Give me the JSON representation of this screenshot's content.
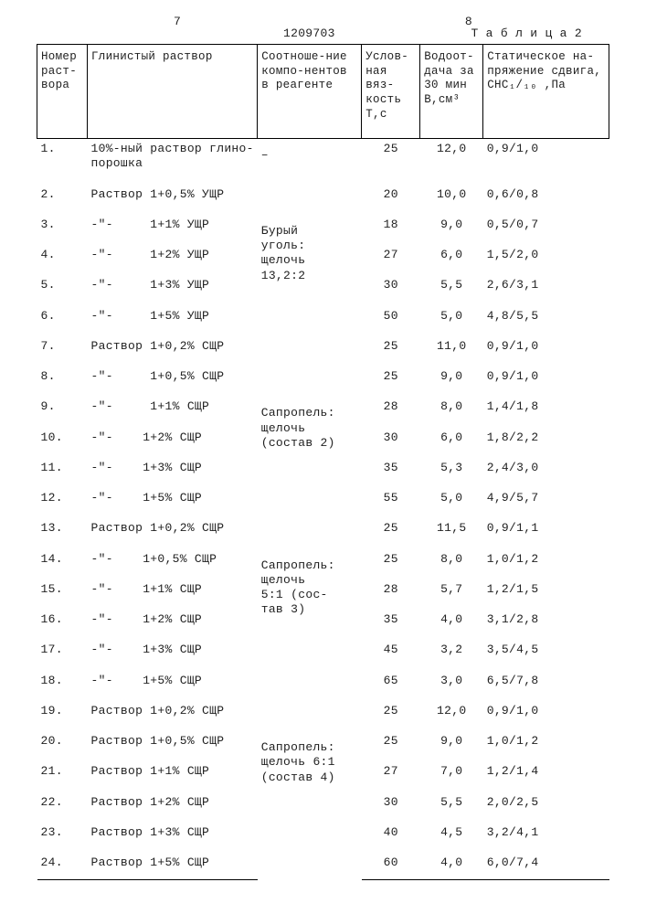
{
  "header": {
    "left_page_col": "7",
    "doc_number": "1209703",
    "right_page_col": "8",
    "table_caption": "Т а б л и ц а  2"
  },
  "columns": {
    "c1": "Номер раст-вора",
    "c2": "Глинистый раствор",
    "c3": "Соотноше-ние компо-нентов в реагенте",
    "c4": "Услов-ная вяз-кость Т,с",
    "c5": "Водоот-дача за 30 мин В,см³",
    "c6": "Статическое на-пряжение сдвига, СНС₁/₁₀ ,Па"
  },
  "groups": [
    {
      "ratio": "–",
      "rows": [
        {
          "n": "1.",
          "sol": "10%-ный раствор глино-\nпорошка",
          "T": "25",
          "B": "12,0",
          "S": "0,9/1,0"
        }
      ]
    },
    {
      "ratio": "",
      "rows": [
        {
          "n": "2.",
          "sol": "Раствор 1+0,5% УЩР",
          "T": "20",
          "B": "10,0",
          "S": "0,6/0,8"
        }
      ]
    },
    {
      "ratio": "Бурый\nуголь:\nщелочь\n13,2:2",
      "rows": [
        {
          "n": "3.",
          "sol": "-\"-     1+1% УЩР",
          "T": "18",
          "B": "9,0",
          "S": "0,5/0,7"
        },
        {
          "n": "4.",
          "sol": "-\"-     1+2% УЩР",
          "T": "27",
          "B": "6,0",
          "S": "1,5/2,0"
        },
        {
          "n": "5.",
          "sol": "-\"-     1+3% УЩР",
          "T": "30",
          "B": "5,5",
          "S": "2,6/3,1"
        },
        {
          "n": "6.",
          "sol": "-\"-     1+5% УЩР",
          "T": "50",
          "B": "5,0",
          "S": "4,8/5,5"
        }
      ]
    },
    {
      "ratio": "",
      "rows": [
        {
          "n": "7.",
          "sol": "Раствор 1+0,2% СЩР",
          "T": "25",
          "B": "11,0",
          "S": "0,9/1,0"
        },
        {
          "n": "8.",
          "sol": "-\"-     1+0,5% СЩР",
          "T": "25",
          "B": "9,0",
          "S": "0,9/1,0"
        }
      ]
    },
    {
      "ratio": "Сапропель:\nщелочь\n(состав 2)",
      "rows": [
        {
          "n": "9.",
          "sol": "-\"-     1+1% СЩР",
          "T": "28",
          "B": "8,0",
          "S": "1,4/1,8"
        },
        {
          "n": "10.",
          "sol": "-\"-    1+2% СЩР",
          "T": "30",
          "B": "6,0",
          "S": "1,8/2,2"
        },
        {
          "n": "11.",
          "sol": "-\"-    1+3% СЩР",
          "T": "35",
          "B": "5,3",
          "S": "2,4/3,0"
        },
        {
          "n": "12.",
          "sol": "-\"-    1+5% СЩР",
          "T": "55",
          "B": "5,0",
          "S": "4,9/5,7"
        }
      ]
    },
    {
      "ratio": "",
      "rows": [
        {
          "n": "13.",
          "sol": "Раствор 1+0,2% СЩР",
          "T": "25",
          "B": "11,5",
          "S": "0,9/1,1"
        }
      ]
    },
    {
      "ratio": "Сапропель:\nщелочь\n5:1 (сос-\nтав 3)",
      "rows": [
        {
          "n": "14.",
          "sol": "-\"-    1+0,5% СЩР",
          "T": "25",
          "B": "8,0",
          "S": "1,0/1,2"
        },
        {
          "n": "15.",
          "sol": "-\"-    1+1% СЩР",
          "T": "28",
          "B": "5,7",
          "S": "1,2/1,5"
        },
        {
          "n": "16.",
          "sol": "-\"-    1+2% СЩР",
          "T": "35",
          "B": "4,0",
          "S": "3,1/2,8"
        },
        {
          "n": "17.",
          "sol": "-\"-    1+3% СЩР",
          "T": "45",
          "B": "3,2",
          "S": "3,5/4,5"
        },
        {
          "n": "18.",
          "sol": "-\"-    1+5% СЩР",
          "T": "65",
          "B": "3,0",
          "S": "6,5/7,8"
        }
      ]
    },
    {
      "ratio": "",
      "rows": [
        {
          "n": "19.",
          "sol": "Раствор 1+0,2% СЩР",
          "T": "25",
          "B": "12,0",
          "S": "0,9/1,0"
        }
      ]
    },
    {
      "ratio": "Сапропель:\nщелочь 6:1\n(состав 4)",
      "rows": [
        {
          "n": "20.",
          "sol": "Раствор 1+0,5% СЩР",
          "T": "25",
          "B": "9,0",
          "S": "1,0/1,2"
        },
        {
          "n": "21.",
          "sol": "Раствор 1+1% СЩР",
          "T": "27",
          "B": "7,0",
          "S": "1,2/1,4"
        },
        {
          "n": "22.",
          "sol": "Раствор 1+2% СЩР",
          "T": "30",
          "B": "5,5",
          "S": "2,0/2,5"
        },
        {
          "n": "23.",
          "sol": "Раствор 1+3% СЩР",
          "T": "40",
          "B": "4,5",
          "S": "3,2/4,1"
        },
        {
          "n": "24.",
          "sol": "Раствор 1+5% СЩР",
          "T": "60",
          "B": "4,0",
          "S": "6,0/7,4"
        }
      ]
    }
  ]
}
